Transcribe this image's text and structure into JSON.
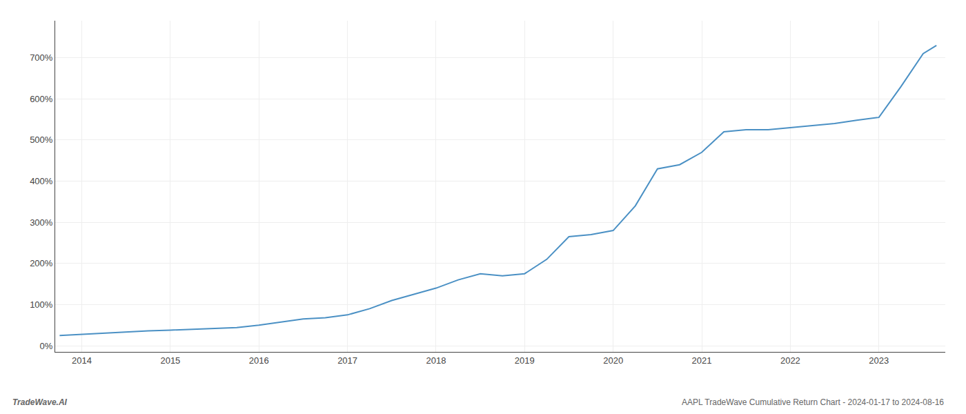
{
  "chart_data": {
    "type": "line",
    "title": "AAPL TradeWave Cumulative Return Chart - 2024-01-17 to 2024-08-16",
    "annotations": [
      "TradeWave.AI"
    ],
    "x": [
      2013.75,
      2014.0,
      2014.25,
      2014.5,
      2014.75,
      2015.0,
      2015.25,
      2015.5,
      2015.75,
      2016.0,
      2016.25,
      2016.5,
      2016.75,
      2017.0,
      2017.25,
      2017.5,
      2017.75,
      2018.0,
      2018.25,
      2018.5,
      2018.75,
      2019.0,
      2019.25,
      2019.5,
      2019.75,
      2020.0,
      2020.25,
      2020.5,
      2020.75,
      2021.0,
      2021.25,
      2021.5,
      2021.75,
      2022.0,
      2022.25,
      2022.5,
      2022.75,
      2023.0,
      2023.25,
      2023.5,
      2023.65
    ],
    "values": [
      25,
      28,
      30,
      33,
      36,
      38,
      40,
      42,
      44,
      50,
      58,
      65,
      68,
      75,
      90,
      110,
      125,
      140,
      160,
      175,
      170,
      175,
      210,
      265,
      270,
      280,
      340,
      430,
      440,
      470,
      520,
      525,
      525,
      530,
      535,
      540,
      548,
      555,
      630,
      710,
      730
    ],
    "color": "#4a90c4",
    "xlim": [
      2013.7,
      2023.75
    ],
    "xticks": [
      2014,
      2015,
      2016,
      2017,
      2018,
      2019,
      2020,
      2021,
      2022,
      2023
    ],
    "ylim": [
      -15,
      790
    ],
    "yticks": [
      {
        "value": 0,
        "label": "0%"
      },
      {
        "value": 100,
        "label": "100%"
      },
      {
        "value": 200,
        "label": "200%"
      },
      {
        "value": 300,
        "label": "300%"
      },
      {
        "value": 400,
        "label": "400%"
      },
      {
        "value": 500,
        "label": "500%"
      },
      {
        "value": 600,
        "label": "600%"
      },
      {
        "value": 700,
        "label": "700%"
      }
    ],
    "grid": true
  }
}
